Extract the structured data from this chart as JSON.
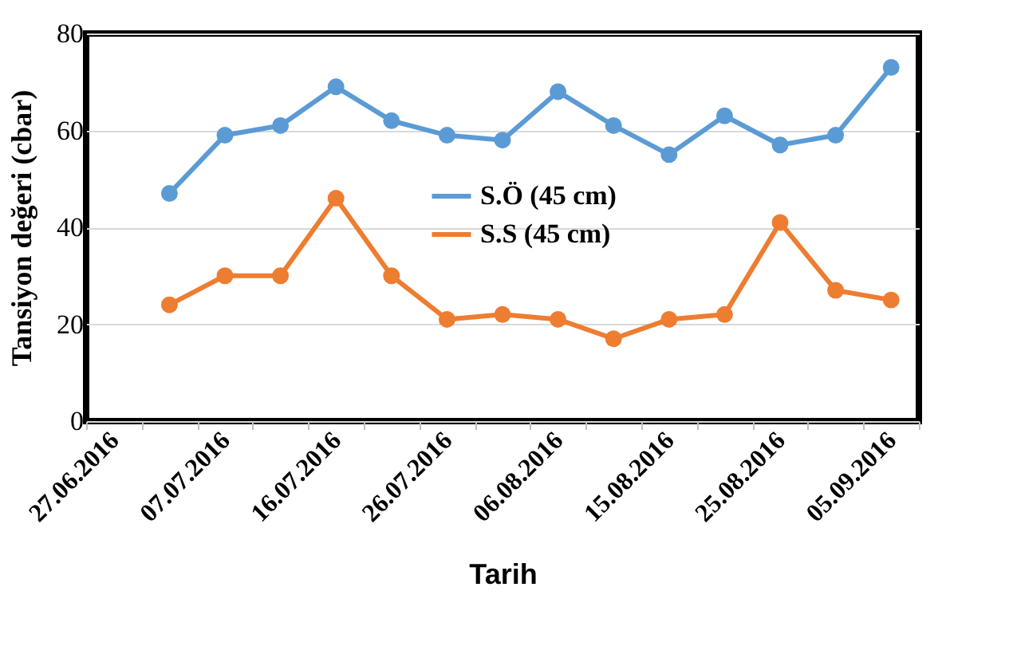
{
  "chart_data": {
    "type": "line",
    "xlabel": "Tarih",
    "ylabel": "Tansiyon değeri (cbar)",
    "categories": [
      "27.06.2016",
      null,
      "07.07.2016",
      null,
      "16.07.2016",
      null,
      "26.07.2016",
      null,
      "06.08.2016",
      null,
      "15.08.2016",
      null,
      "25.08.2016",
      null,
      "05.09.2016"
    ],
    "series": [
      {
        "name": "S.Ö (45 cm)",
        "color": "#5b9bd5",
        "values": [
          null,
          47,
          59,
          61,
          69,
          62,
          59,
          58,
          68,
          61,
          55,
          63,
          57,
          59,
          73
        ]
      },
      {
        "name": "S.S (45 cm)",
        "color": "#ed7d31",
        "values": [
          null,
          24,
          30,
          30,
          46,
          30,
          21,
          22,
          21,
          17,
          21,
          22,
          41,
          27,
          25
        ]
      }
    ],
    "ylim": [
      0,
      80
    ],
    "yticks": [
      0,
      20,
      40,
      60,
      80
    ],
    "grid": "y",
    "legend": "center",
    "marker": "circle",
    "line_style": "solid"
  }
}
